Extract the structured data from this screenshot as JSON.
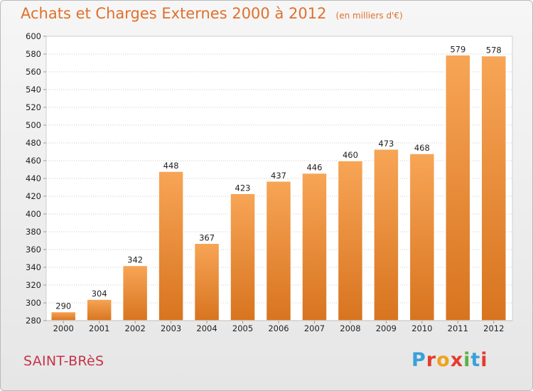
{
  "header": {
    "title": "Achats et Charges Externes 2000 à 2012",
    "unit": "(en milliers d'€)"
  },
  "footer": {
    "commune": "SAINT-BRèS",
    "logo_text": "Proxiti",
    "logo_colors": [
      "#3aa0d8",
      "#e43c2f",
      "#f0a21c",
      "#e43c2f",
      "#59b341",
      "#3aa0d8",
      "#e43c2f"
    ]
  },
  "colors": {
    "bar_top": "#f7a556",
    "bar_bottom": "#d8741f",
    "title": "#e0702c",
    "commune": "#c4344a",
    "gridline": "#c8c8c8"
  },
  "chart_data": {
    "type": "bar",
    "title": "Achats et Charges Externes 2000 à 2012",
    "subtitle": "(en milliers d'€)",
    "categories": [
      "2000",
      "2001",
      "2002",
      "2003",
      "2004",
      "2005",
      "2006",
      "2007",
      "2008",
      "2009",
      "2010",
      "2011",
      "2012"
    ],
    "values": [
      290,
      304,
      342,
      448,
      367,
      423,
      437,
      446,
      460,
      473,
      468,
      579,
      578
    ],
    "ylim": [
      280,
      600
    ],
    "yticks": [
      280,
      300,
      320,
      340,
      360,
      380,
      400,
      420,
      440,
      460,
      480,
      500,
      520,
      540,
      560,
      580,
      600
    ],
    "grid": true,
    "xlabel": "",
    "ylabel": ""
  }
}
